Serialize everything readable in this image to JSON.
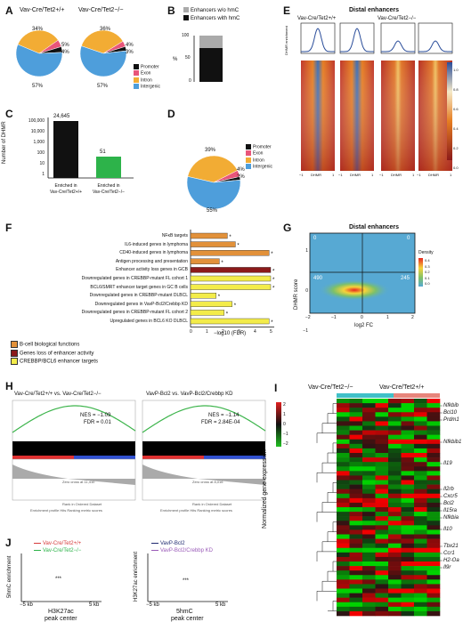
{
  "colors": {
    "promoter": "#111111",
    "exon": "#e8557a",
    "intron": "#f2ac34",
    "intergenic": "#4e9edb",
    "green": "#2db34a",
    "orange": "#e2913a",
    "darkred": "#8b1a1a",
    "yellow": "#f3ec4a",
    "teal": "#40c0c8",
    "salmon": "#e7857c",
    "red": "#d63a3a",
    "navy": "#1f2a70",
    "purple": "#9a5bb8"
  },
  "panelA": {
    "label": "A",
    "title_left": "Vav-Cre/Tet2+/+",
    "title_right": "Vav-Cre/Tet2−/−",
    "pie_left": {
      "labels": [
        "34%",
        "5%",
        "4%",
        "57%"
      ]
    },
    "pie_right": {
      "labels": [
        "36%",
        "4%",
        "3%",
        "57%"
      ]
    },
    "legend": [
      "Promoter",
      "Exon",
      "Intron",
      "Intergenic"
    ]
  },
  "panelB": {
    "label": "B",
    "legend": [
      "Enhancers w/o hmC",
      "Enhancers with hmC"
    ],
    "ylabel": "%",
    "ticks": [
      "0",
      "50",
      "100"
    ]
  },
  "panelC": {
    "label": "C",
    "ylabel": "Number of DHMR",
    "ticks": [
      "100,000",
      "10,000",
      "1,000",
      "100",
      "10",
      "1"
    ],
    "bar1_value": "24,645",
    "bar2_value": "51",
    "cat1_line1": "Enriched in",
    "cat1_line2": "Vav-Cre/Tet2+/+",
    "cat2_line1": "Enriched in",
    "cat2_line2": "Vav-Cre/Tet2−/−"
  },
  "panelD": {
    "label": "D",
    "labels": [
      "39%",
      "4%",
      "2%",
      "55%"
    ],
    "legend": [
      "Promoter",
      "Exon",
      "Intron",
      "Intergenic"
    ]
  },
  "panelE": {
    "label": "E",
    "title": "Distal enhancers",
    "left": "Vav-Cre/Tet2+/+",
    "right": "Vav-Cre/Tet2−/−",
    "ylabel": "DHMR enrichment",
    "xlab": [
      "−1",
      "DHMR",
      "1",
      "−1",
      "DHMR",
      "1",
      "−1",
      "DHMR",
      "1",
      "−1",
      "DHMR",
      "1"
    ],
    "scale": [
      "1.0",
      "0.8",
      "0.6",
      "0.4",
      "0.2",
      "0.0"
    ]
  },
  "panelF": {
    "label": "F",
    "xlabel": "−log10 (FDR)",
    "ticks": [
      "0",
      "1",
      "2",
      "3",
      "4",
      "5"
    ],
    "items": [
      {
        "label": "NFκB targets",
        "value": 2.3,
        "cat": "orange"
      },
      {
        "label": "IL6-induced genes in lymphoma",
        "value": 2.8,
        "cat": "orange"
      },
      {
        "label": "CD40-induced genes in lymphoma",
        "value": 4.9,
        "cat": "orange"
      },
      {
        "label": "Antigen processing and presentation",
        "value": 1.8,
        "cat": "orange"
      },
      {
        "label": "Enhancer activity loss genes in GCB",
        "value": 5.0,
        "cat": "darkred"
      },
      {
        "label": "Downregulated genes in CREBBP-mutant FL cohort 1",
        "value": 5.0,
        "cat": "yellow"
      },
      {
        "label": "BCL6/SMRT enhancer target genes in GC B cells",
        "value": 5.0,
        "cat": "yellow"
      },
      {
        "label": "Downregulated genes in CREBBP-mutant DLBCL",
        "value": 1.6,
        "cat": "yellow"
      },
      {
        "label": "Downregulated genes in VavP-Bcl2/Crebbp KD",
        "value": 2.6,
        "cat": "yellow"
      },
      {
        "label": "Downregulated genes in CREBBP-mutant FL cohort 2",
        "value": 2.1,
        "cat": "yellow"
      },
      {
        "label": "Upregulated genes in BCL6 KO DLBCL",
        "value": 4.9,
        "cat": "yellow"
      }
    ],
    "legend": [
      "B-cell biological functions",
      "Genes loss of enhancer activity",
      "CREBBP/BCL6 enhancer targets"
    ]
  },
  "panelG": {
    "label": "G",
    "title": "Distal enhancers",
    "ylabel": "DHMR score",
    "xlabel": "log2 FC",
    "q_tl": "0",
    "q_tr": "0",
    "q_bl": "490",
    "q_br": "245",
    "xticks": [
      "−2",
      "−1",
      "0",
      "1",
      "2"
    ],
    "yticks": [
      "1",
      "0",
      "−1"
    ],
    "legend_title": "Density",
    "legend_vals": [
      "0.4",
      "0.3",
      "0.2",
      "0.1",
      "0.0"
    ]
  },
  "panelH": {
    "label": "H",
    "title_left": "Vav-Cre/Tet2+/+ vs. Vav-Cre/Tet2−/−",
    "title_right": "VavP-Bcl2 vs. VavP-Bcl2/Crebbp KD",
    "nes_left": "NES = −1.09",
    "fdr_left": "FDR = 0.01",
    "nes_right": "NES = −1.14",
    "fdr_right": "FDR = 2.84E-04",
    "es_label": "Enrichment score (ES)",
    "rank_label": "Ranked list metric",
    "zero_left": "Zero cross at 11,410",
    "zero_right": "Zero cross at 8,016",
    "xaxis": "Rank in Ordered Dataset",
    "legend": "Enrichment profile   Hits   Ranking metric scores"
  },
  "panelI": {
    "label": "I",
    "col_left": "Vav-Cre/Tet2−/−",
    "col_right": "Vav-Cre/Tet2+/+",
    "ylabel": "Normalized gene expression",
    "scale": [
      "2",
      "1",
      "0",
      "−1",
      "−2"
    ],
    "genes": [
      "Nfkbib",
      "Bcl10",
      "Prdm1",
      "Nfkbib1",
      "Il19",
      "Il2rb",
      "Cxcr5",
      "Bcl2",
      "Il15ra",
      "Nfkbia",
      "Il10",
      "Tbx21",
      "Ccr1",
      "H2-Oa",
      "Il9r"
    ]
  },
  "panelJ": {
    "label": "J",
    "left": {
      "legend": [
        "Vav-Cre/Tet2+/+",
        "Vav-Cre/Tet2−/−"
      ],
      "ylabel": "5hmC enrichment",
      "xlabel": "H3K27ac",
      "xlabel2": "peak center",
      "xticks": [
        "−5 kb",
        "5 kb"
      ],
      "sig": "***"
    },
    "right": {
      "legend": [
        "VavP-Bcl2",
        "VavP-Bcl2/Crebbp KD"
      ],
      "ylabel": "H3K27ac enrichment",
      "xlabel": "5hmC",
      "xlabel2": "peak center",
      "xticks": [
        "−5 kb",
        "5 kb"
      ],
      "sig": "***"
    }
  }
}
